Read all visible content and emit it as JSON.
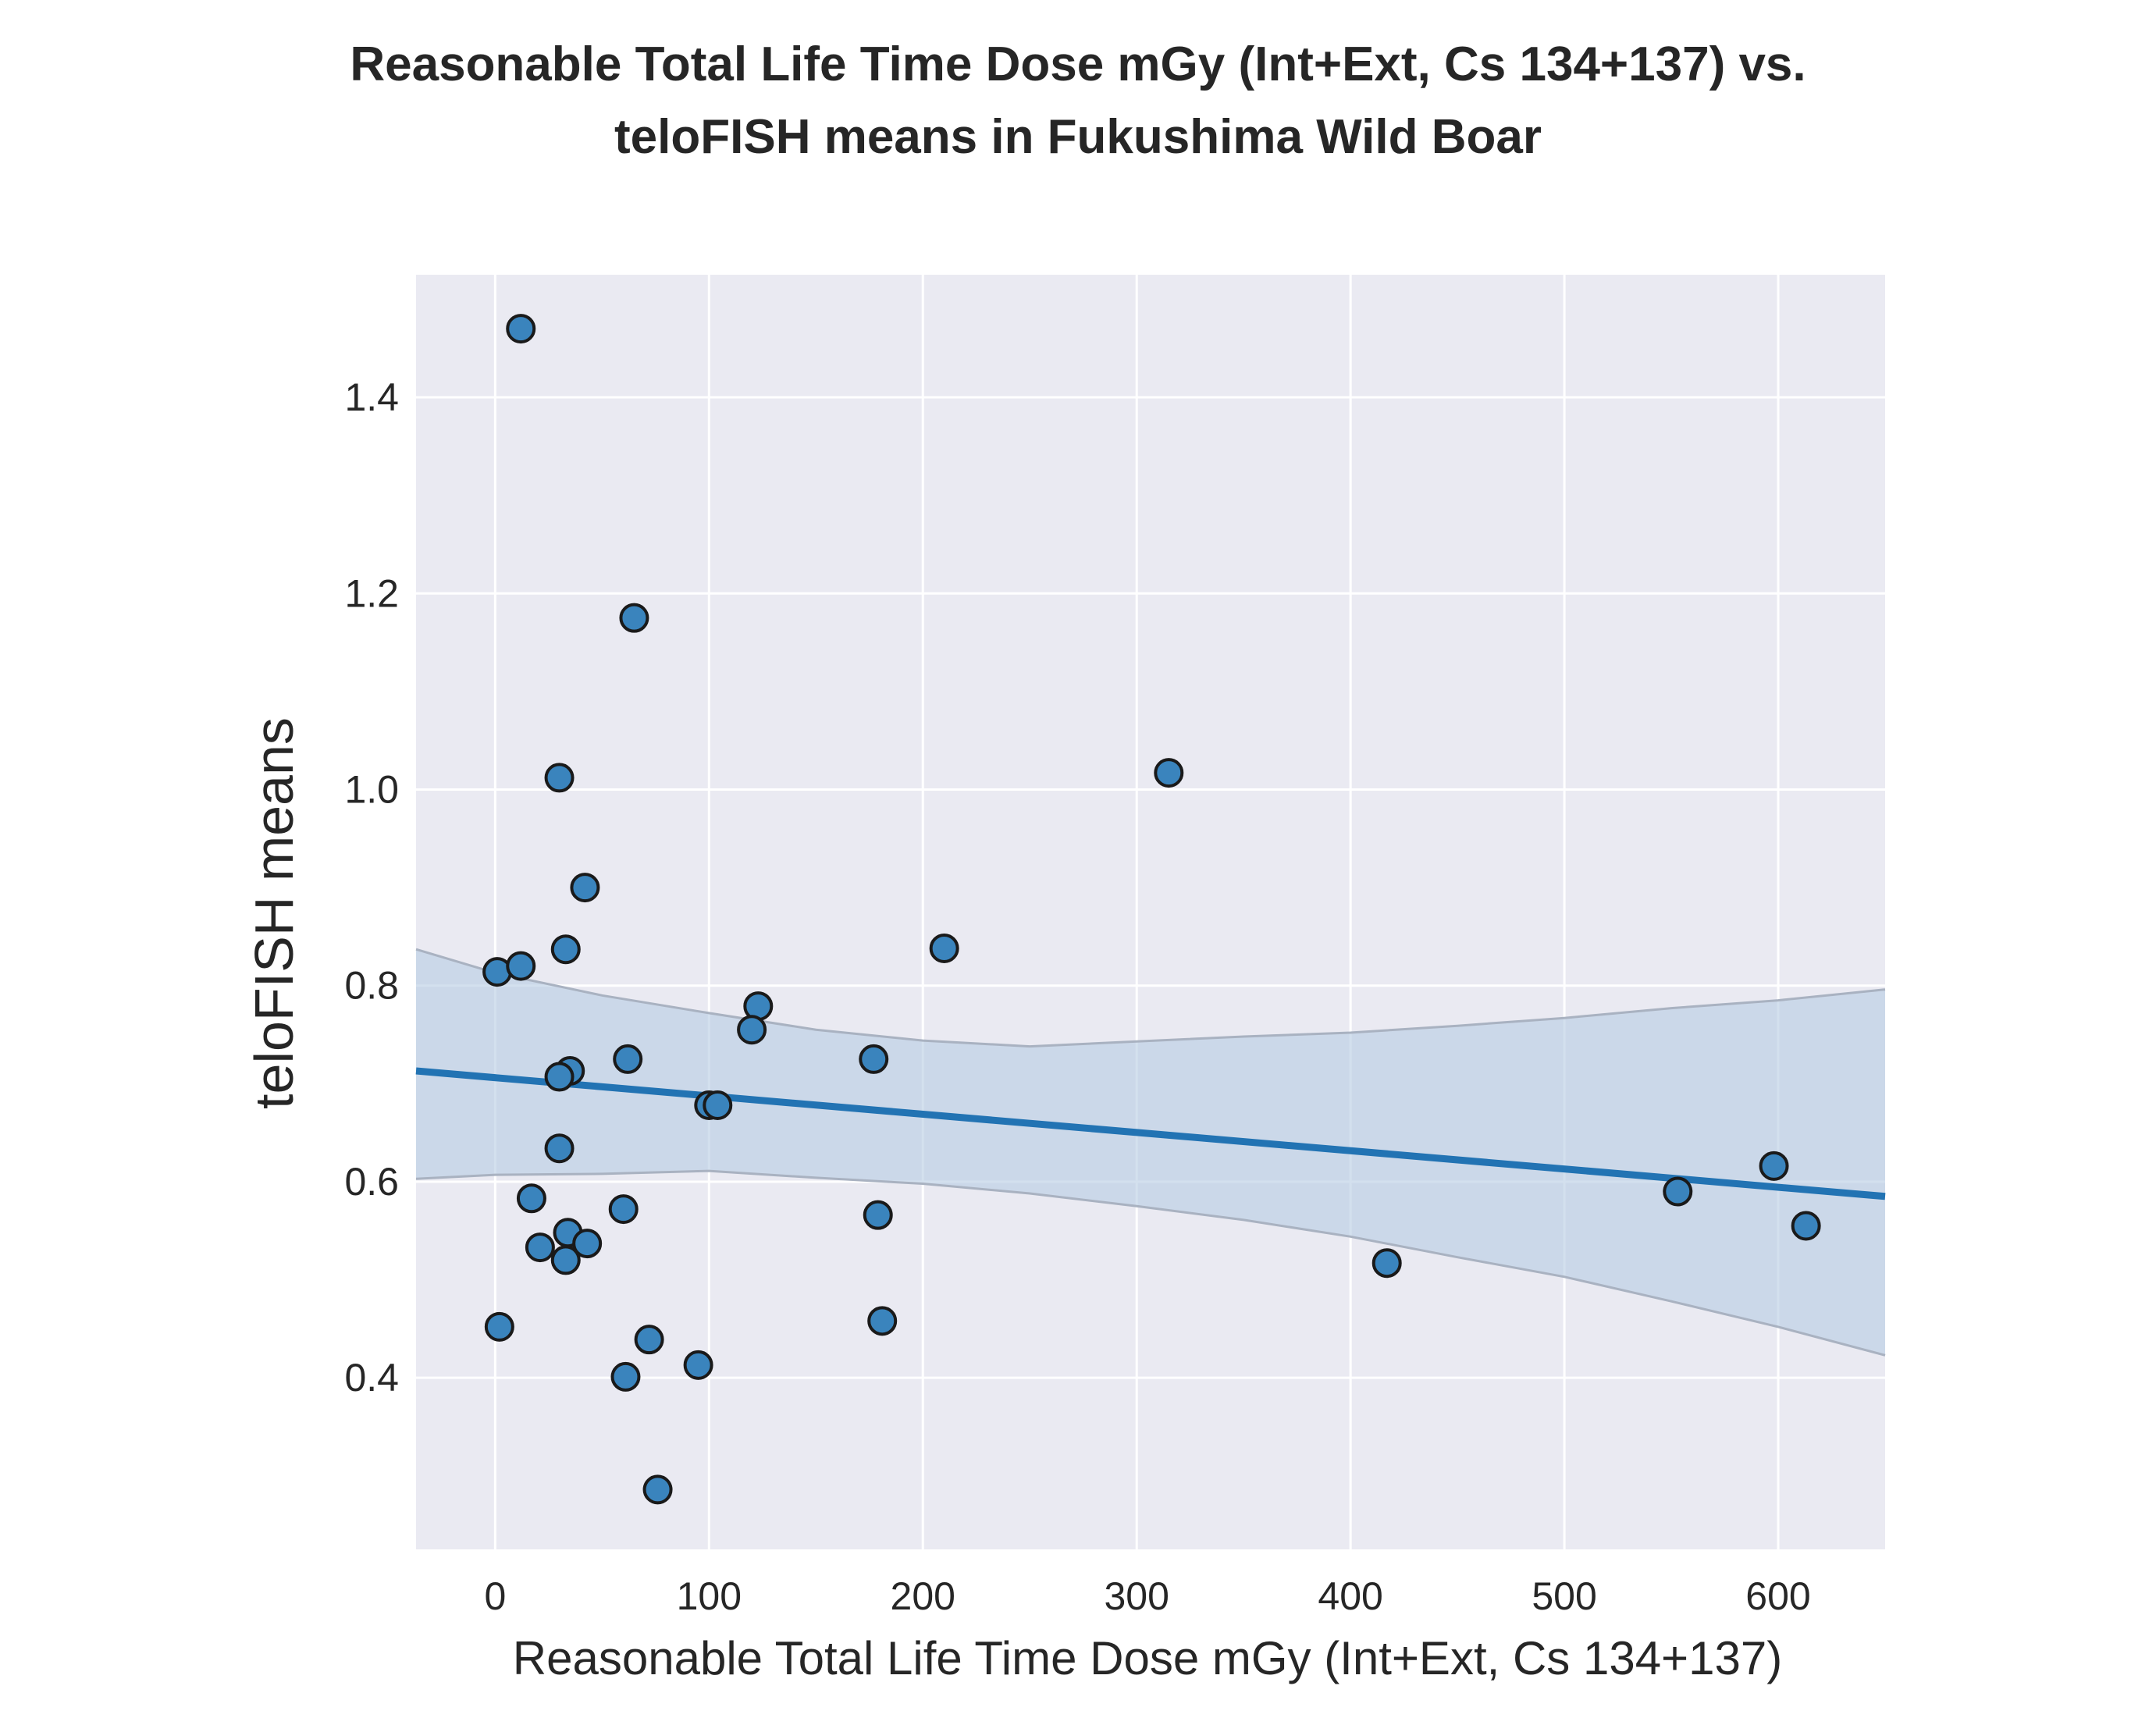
{
  "chart_data": {
    "type": "scatter",
    "title": "Reasonable Total Life Time Dose mGy (Int+Ext, Cs 134+137) vs.\nteloFISH means in Fukushima Wild Boar",
    "title_lines": [
      "Reasonable Total Life Time Dose mGy (Int+Ext, Cs 134+137) vs.",
      "teloFISH means in Fukushima Wild Boar"
    ],
    "xlabel": "Reasonable Total Life Time Dose mGy (Int+Ext, Cs 134+137)",
    "ylabel": "teloFISH means",
    "xlim": [
      -37,
      650
    ],
    "ylim": [
      0.225,
      1.525
    ],
    "xticks": [
      0,
      100,
      200,
      300,
      400,
      500,
      600
    ],
    "yticks": [
      0.4,
      0.6,
      0.8,
      1.0,
      1.2,
      1.4
    ],
    "ytick_labels": [
      "0.4",
      "0.6",
      "0.8",
      "1.0",
      "1.2",
      "1.4"
    ],
    "grid": true,
    "colors": {
      "background": "#eaeaf2",
      "grid": "#ffffff",
      "point_fill": "#3a84bd",
      "point_edge": "#1a1a1a",
      "line": "#2273b3",
      "band": "#b5cbe2",
      "band_edge": "#a9b2c1"
    },
    "points": [
      {
        "x": 12,
        "y": 1.47
      },
      {
        "x": 65,
        "y": 1.175
      },
      {
        "x": 30,
        "y": 1.012
      },
      {
        "x": 315,
        "y": 1.017
      },
      {
        "x": 42,
        "y": 0.9
      },
      {
        "x": 33,
        "y": 0.837
      },
      {
        "x": 210,
        "y": 0.838
      },
      {
        "x": 1,
        "y": 0.814
      },
      {
        "x": 12,
        "y": 0.82
      },
      {
        "x": 123,
        "y": 0.779
      },
      {
        "x": 120,
        "y": 0.755
      },
      {
        "x": 62,
        "y": 0.725
      },
      {
        "x": 177,
        "y": 0.725
      },
      {
        "x": 35,
        "y": 0.713
      },
      {
        "x": 30,
        "y": 0.707
      },
      {
        "x": 100,
        "y": 0.678
      },
      {
        "x": 104,
        "y": 0.678
      },
      {
        "x": 30,
        "y": 0.634
      },
      {
        "x": 17,
        "y": 0.583
      },
      {
        "x": 60,
        "y": 0.572
      },
      {
        "x": 179,
        "y": 0.566
      },
      {
        "x": 34,
        "y": 0.548
      },
      {
        "x": 43,
        "y": 0.537
      },
      {
        "x": 21,
        "y": 0.533
      },
      {
        "x": 33,
        "y": 0.52
      },
      {
        "x": 417,
        "y": 0.517
      },
      {
        "x": 553,
        "y": 0.59
      },
      {
        "x": 598,
        "y": 0.616
      },
      {
        "x": 613,
        "y": 0.555
      },
      {
        "x": 2,
        "y": 0.452
      },
      {
        "x": 181,
        "y": 0.458
      },
      {
        "x": 72,
        "y": 0.439
      },
      {
        "x": 95,
        "y": 0.413
      },
      {
        "x": 61,
        "y": 0.401
      },
      {
        "x": 76,
        "y": 0.286
      }
    ],
    "regression": {
      "x": [
        -37,
        650
      ],
      "y": [
        0.713,
        0.585
      ]
    },
    "confidence_band": {
      "x": [
        -37,
        0,
        50,
        100,
        150,
        200,
        250,
        300,
        350,
        400,
        450,
        500,
        550,
        600,
        650
      ],
      "upper": [
        0.837,
        0.813,
        0.79,
        0.772,
        0.755,
        0.744,
        0.738,
        0.743,
        0.748,
        0.752,
        0.759,
        0.767,
        0.777,
        0.785,
        0.796
      ],
      "lower": [
        0.603,
        0.607,
        0.608,
        0.611,
        0.604,
        0.598,
        0.588,
        0.575,
        0.561,
        0.544,
        0.523,
        0.503,
        0.478,
        0.452,
        0.423
      ]
    }
  }
}
